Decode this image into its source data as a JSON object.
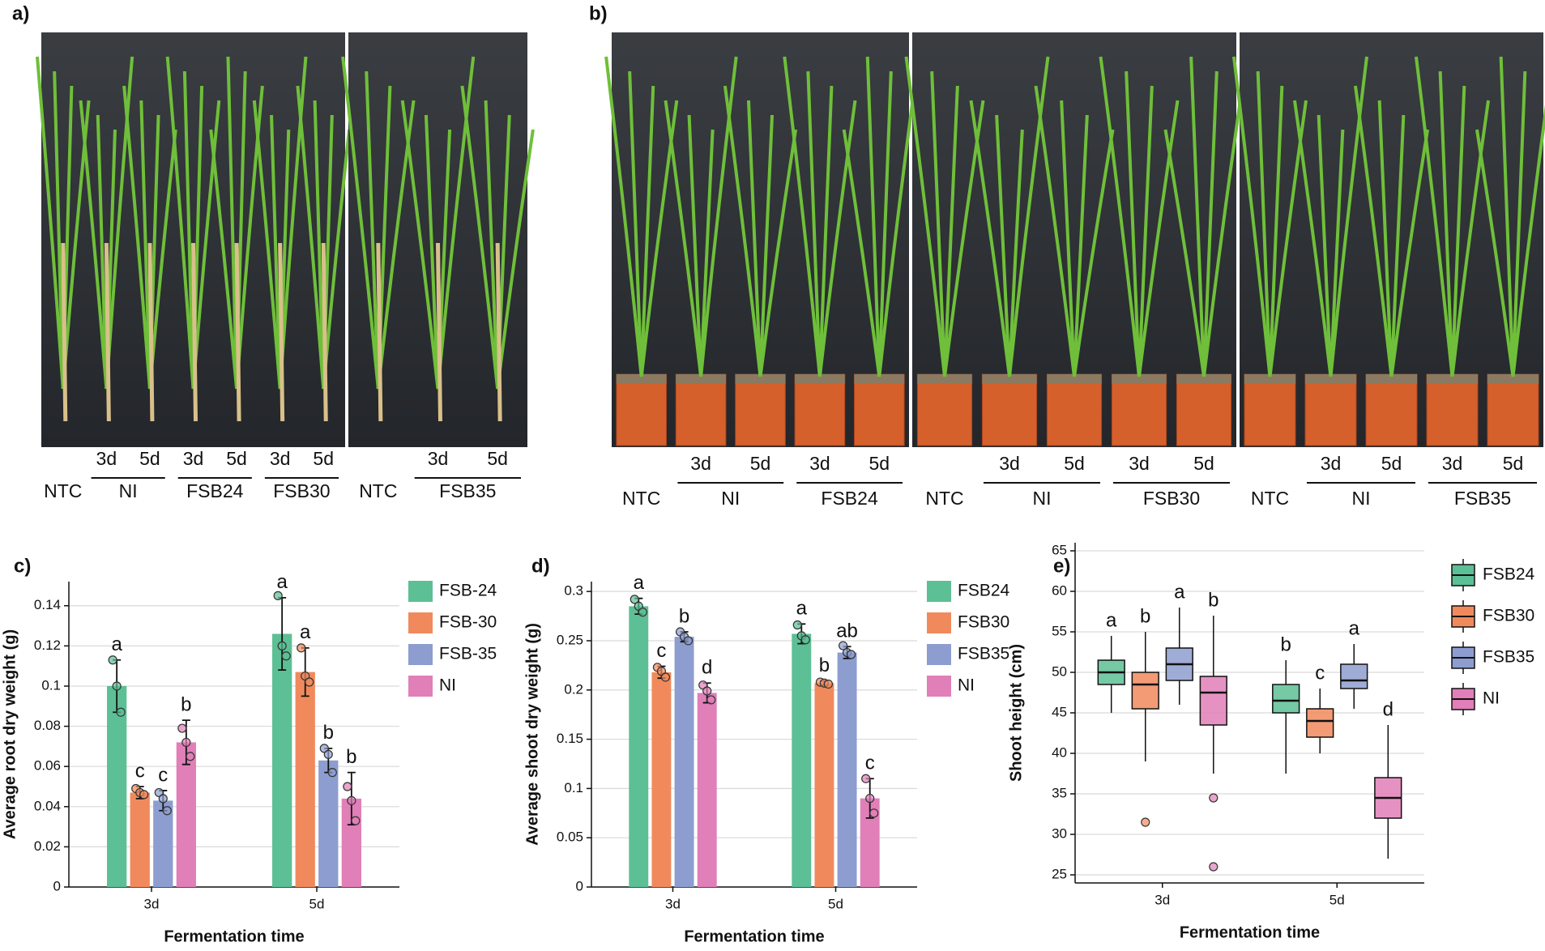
{
  "photos": [
    {
      "label": "a)",
      "images": [
        {
          "groups": [
            {
              "name": "NTC"
            },
            {
              "name": "NI",
              "times": [
                "3d",
                "5d"
              ]
            },
            {
              "name": "FSB24",
              "times": [
                "3d",
                "5d"
              ]
            },
            {
              "name": "FSB30",
              "times": [
                "3d",
                "5d"
              ]
            }
          ]
        },
        {
          "groups": [
            {
              "name": "NTC"
            },
            {
              "name": "FSB35",
              "times": [
                "3d",
                "5d"
              ]
            }
          ]
        }
      ]
    },
    {
      "label": "b)",
      "images": [
        {
          "groups": [
            {
              "name": "NTC"
            },
            {
              "name": "NI",
              "times": [
                "3d",
                "5d"
              ]
            },
            {
              "name": "FSB24",
              "times": [
                "3d",
                "5d"
              ]
            }
          ]
        },
        {
          "groups": [
            {
              "name": "NTC"
            },
            {
              "name": "NI",
              "times": [
                "3d",
                "5d"
              ]
            },
            {
              "name": "FSB30",
              "times": [
                "3d",
                "5d"
              ]
            }
          ]
        },
        {
          "groups": [
            {
              "name": "NTC"
            },
            {
              "name": "NI",
              "times": [
                "3d",
                "5d"
              ]
            },
            {
              "name": "FSB35",
              "times": [
                "3d",
                "5d"
              ]
            }
          ]
        }
      ]
    }
  ],
  "chart_data": [
    {
      "type": "bar",
      "label": "c)",
      "y_label": "Average root dry weight (g)",
      "x_label": "Fermentation time",
      "categories": [
        "3d",
        "5d"
      ],
      "ylim": [
        0,
        0.152
      ],
      "yticks": [
        0,
        0.02,
        0.04,
        0.06,
        0.08,
        0.1,
        0.12,
        0.14
      ],
      "grid": true,
      "series": [
        {
          "name": "FSB-24",
          "color": "#5dbf95",
          "values": [
            0.1,
            0.126
          ],
          "errors": [
            0.013,
            0.018
          ],
          "letters": [
            "a",
            "a"
          ],
          "points": [
            [
              0.113,
              0.1,
              0.087
            ],
            [
              0.145,
              0.12,
              0.115
            ]
          ]
        },
        {
          "name": "FSB-30",
          "color": "#f08a5d",
          "values": [
            0.047,
            0.107
          ],
          "errors": [
            0.003,
            0.012
          ],
          "letters": [
            "c",
            "a"
          ],
          "points": [
            [
              0.049,
              0.047,
              0.046
            ],
            [
              0.119,
              0.105,
              0.102
            ]
          ]
        },
        {
          "name": "FSB-35",
          "color": "#8d9dcf",
          "values": [
            0.043,
            0.063
          ],
          "errors": [
            0.005,
            0.006
          ],
          "letters": [
            "c",
            "b"
          ],
          "points": [
            [
              0.047,
              0.044,
              0.038
            ],
            [
              0.069,
              0.066,
              0.057
            ]
          ]
        },
        {
          "name": "NI",
          "color": "#e07fb8",
          "values": [
            0.072,
            0.044
          ],
          "errors": [
            0.011,
            0.013
          ],
          "letters": [
            "b",
            "b"
          ],
          "points": [
            [
              0.079,
              0.072,
              0.065
            ],
            [
              0.05,
              0.043,
              0.033
            ]
          ]
        }
      ]
    },
    {
      "type": "bar",
      "label": "d)",
      "y_label": "Average shoot dry weight (g)",
      "x_label": "Fermentation time",
      "categories": [
        "3d",
        "5d"
      ],
      "ylim": [
        0,
        0.31
      ],
      "yticks": [
        0,
        0.05,
        0.1,
        0.15,
        0.2,
        0.25,
        0.3
      ],
      "grid": true,
      "series": [
        {
          "name": "FSB24",
          "color": "#5dbf95",
          "values": [
            0.285,
            0.257
          ],
          "errors": [
            0.008,
            0.01
          ],
          "letters": [
            "a",
            "a"
          ],
          "points": [
            [
              0.292,
              0.285,
              0.279
            ],
            [
              0.266,
              0.255,
              0.251
            ]
          ]
        },
        {
          "name": "FSB30",
          "color": "#f08a5d",
          "values": [
            0.218,
            0.207
          ],
          "errors": [
            0.006,
            0.002
          ],
          "letters": [
            "c",
            "b"
          ],
          "points": [
            [
              0.223,
              0.219,
              0.213
            ],
            [
              0.208,
              0.207,
              0.206
            ]
          ]
        },
        {
          "name": "FSB35",
          "color": "#8d9dcf",
          "values": [
            0.254,
            0.238
          ],
          "errors": [
            0.005,
            0.006
          ],
          "letters": [
            "b",
            "ab"
          ],
          "points": [
            [
              0.259,
              0.254,
              0.25
            ],
            [
              0.245,
              0.238,
              0.236
            ]
          ]
        },
        {
          "name": "NI",
          "color": "#e07fb8",
          "values": [
            0.197,
            0.09
          ],
          "errors": [
            0.01,
            0.02
          ],
          "letters": [
            "d",
            "c"
          ],
          "points": [
            [
              0.205,
              0.199,
              0.19
            ],
            [
              0.11,
              0.09,
              0.075
            ]
          ]
        }
      ]
    },
    {
      "type": "box",
      "label": "e)",
      "y_label": "Shoot height (cm)",
      "x_label": "Fermentation time",
      "categories": [
        "3d",
        "5d"
      ],
      "ylim": [
        24,
        66
      ],
      "yticks": [
        25,
        30,
        35,
        40,
        45,
        50,
        55,
        60,
        65
      ],
      "grid": true,
      "series": [
        {
          "name": "FSB24",
          "color": "#5dbf95",
          "stats": [
            [
              45,
              48.5,
              50,
              51.5,
              54.5
            ],
            [
              37.5,
              45,
              46.5,
              48.5,
              51.5
            ]
          ],
          "outliers": [
            [],
            []
          ],
          "letters": [
            "a",
            "b"
          ]
        },
        {
          "name": "FSB30",
          "color": "#f08a5d",
          "stats": [
            [
              39,
              45.5,
              48.5,
              50,
              55
            ],
            [
              40,
              42,
              44,
              45.5,
              48
            ]
          ],
          "outliers": [
            [
              31.5
            ],
            []
          ],
          "letters": [
            "b",
            "c"
          ]
        },
        {
          "name": "FSB35",
          "color": "#8d9dcf",
          "stats": [
            [
              46,
              49,
              51,
              53,
              58
            ],
            [
              45.5,
              48,
              49,
              51,
              53.5
            ]
          ],
          "outliers": [
            [],
            []
          ],
          "letters": [
            "a",
            "a"
          ]
        },
        {
          "name": "NI",
          "color": "#e07fb8",
          "stats": [
            [
              37.5,
              43.5,
              47.5,
              49.5,
              57
            ],
            [
              27,
              32,
              34.5,
              37,
              43.5
            ]
          ],
          "outliers": [
            [
              34.5,
              26
            ],
            []
          ],
          "letters": [
            "b",
            "d"
          ]
        }
      ]
    }
  ]
}
